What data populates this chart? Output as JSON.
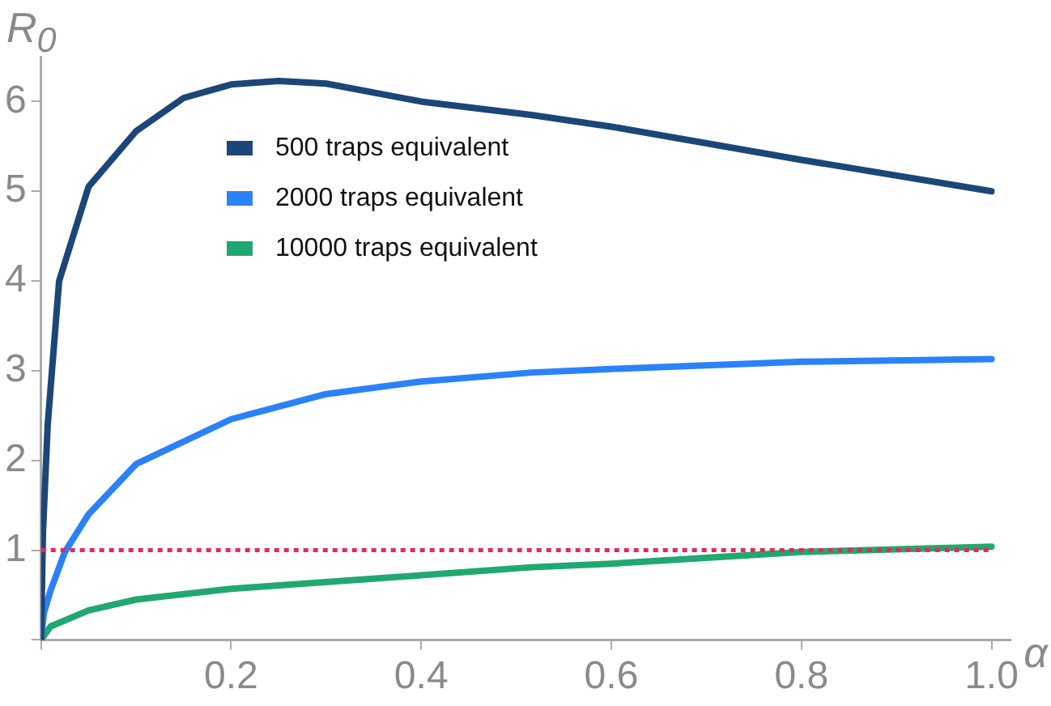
{
  "chart_data": {
    "type": "line",
    "xlabel": "α",
    "ylabel": "R$_{0}$",
    "xlim": [
      0,
      1.02
    ],
    "ylim": [
      0,
      6.5
    ],
    "xticks": [
      {
        "value": 0,
        "label": null
      },
      0.2,
      0.4,
      0.6,
      0.8,
      {
        "value": 1,
        "label": "1.0"
      }
    ],
    "yticks": [
      {
        "value": 0,
        "label": null
      },
      1,
      2,
      3,
      4,
      5,
      6
    ],
    "grid": false,
    "legend": "top left",
    "marker": "none",
    "line_style": "solid",
    "series": [
      {
        "name": "500 traps equivalent",
        "color": "#1b4677",
        "x": [
          0,
          0.002,
          0.007,
          0.019,
          0.05,
          0.1,
          0.15,
          0.2,
          0.25,
          0.3,
          0.4,
          0.516,
          0.6,
          0.8,
          1.0
        ],
        "values": [
          0,
          1.2,
          2.4,
          4.0,
          5.05,
          5.67,
          6.04,
          6.19,
          6.23,
          6.2,
          6.0,
          5.85,
          5.72,
          5.35,
          5.0
        ]
      },
      {
        "name": "2000 traps equivalent",
        "color": "#2b82f8",
        "x": [
          0,
          0.003,
          0.01,
          0.025,
          0.05,
          0.1,
          0.2,
          0.3,
          0.4,
          0.516,
          0.6,
          0.8,
          1.0
        ],
        "values": [
          0,
          0.3,
          0.55,
          0.98,
          1.4,
          1.96,
          2.46,
          2.74,
          2.88,
          2.98,
          3.02,
          3.1,
          3.13
        ]
      },
      {
        "name": "10000 traps equivalent",
        "color": "#20a872",
        "x": [
          0,
          0.01,
          0.05,
          0.1,
          0.2,
          0.4,
          0.516,
          0.6,
          0.8,
          1.0
        ],
        "values": [
          0,
          0.15,
          0.33,
          0.45,
          0.57,
          0.72,
          0.81,
          0.85,
          0.98,
          1.04
        ]
      }
    ],
    "ref_lines": [
      {
        "axis": "y",
        "value": 1,
        "color": "#e8275a",
        "line_style": "dotted"
      }
    ]
  }
}
